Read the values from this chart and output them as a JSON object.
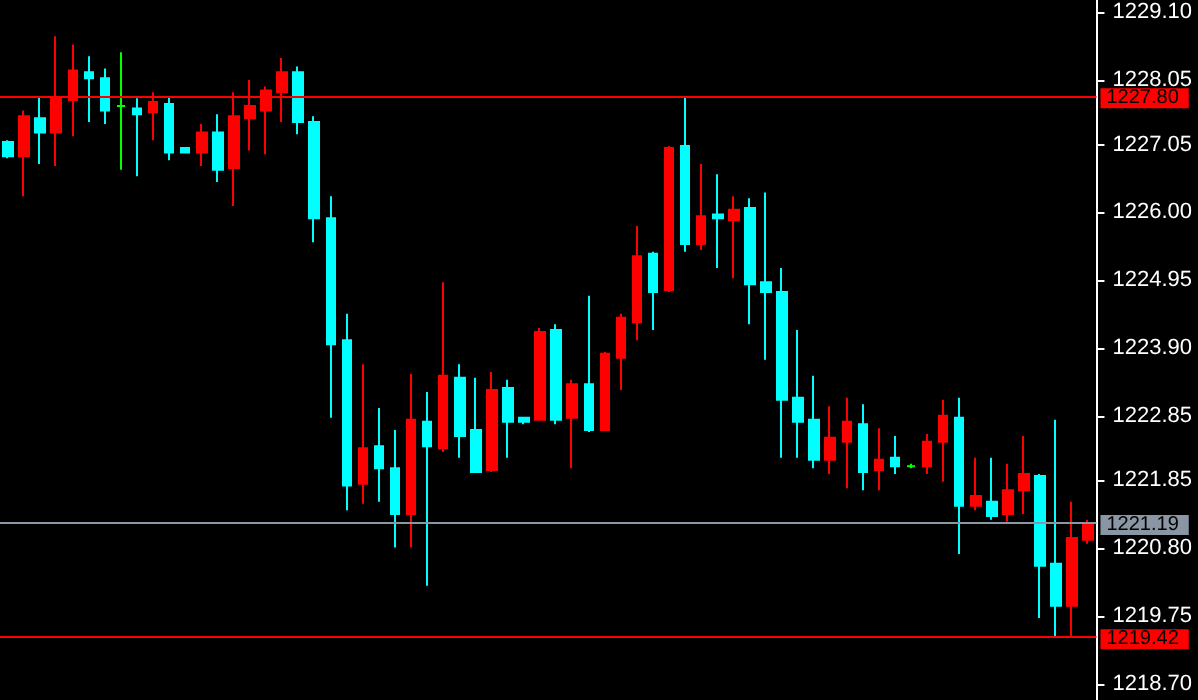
{
  "chart_data": {
    "type": "candlestick",
    "categories": [
      null,
      null,
      null,
      null,
      null,
      null,
      null,
      null,
      null,
      null,
      null,
      null,
      null,
      null,
      null,
      null,
      null,
      null,
      null,
      null,
      null,
      null,
      null,
      null,
      null,
      null,
      null,
      null,
      null,
      null,
      null,
      null,
      null,
      null,
      null,
      null,
      null,
      null,
      null,
      null,
      null,
      null,
      null,
      null,
      null,
      null,
      null,
      null,
      null,
      null,
      null,
      null,
      null,
      null,
      null,
      null,
      null,
      null,
      null,
      null,
      null,
      null,
      null,
      null,
      null,
      null,
      null,
      null
    ],
    "ohlc": [
      [
        1227.09,
        1227.12,
        1226.84,
        1226.87
      ],
      [
        1226.87,
        1227.58,
        1226.25,
        1227.49
      ],
      [
        1227.46,
        1227.8,
        1226.75,
        1227.24
      ],
      [
        1227.24,
        1228.73,
        1226.72,
        1227.77
      ],
      [
        1227.74,
        1228.6,
        1227.18,
        1228.2
      ],
      [
        1228.17,
        1228.42,
        1227.4,
        1228.08
      ],
      [
        1228.08,
        1228.23,
        1227.37,
        1227.58
      ],
      [
        1227.65,
        1228.48,
        1226.66,
        1227.65
      ],
      [
        1227.61,
        1227.77,
        1226.56,
        1227.52
      ],
      [
        1227.55,
        1227.86,
        1227.12,
        1227.71
      ],
      [
        1227.68,
        1227.8,
        1226.81,
        1226.93
      ],
      [
        1227.0,
        1227.0,
        1226.93,
        1226.93
      ],
      [
        1226.93,
        1227.37,
        1226.72,
        1227.24
      ],
      [
        1227.24,
        1227.52,
        1226.47,
        1226.66
      ],
      [
        1226.69,
        1227.86,
        1226.1,
        1227.49
      ],
      [
        1227.46,
        1228.05,
        1226.96,
        1227.65
      ],
      [
        1227.58,
        1227.95,
        1226.9,
        1227.89
      ],
      [
        1227.86,
        1228.39,
        1227.4,
        1228.17
      ],
      [
        1228.17,
        1228.26,
        1227.21,
        1227.4
      ],
      [
        1227.4,
        1227.49,
        1225.54,
        1225.91
      ],
      [
        1225.91,
        1226.25,
        1222.82,
        1223.96
      ],
      [
        1224.02,
        1224.43,
        1221.39,
        1221.77
      ],
      [
        1221.8,
        1223.65,
        1221.49,
        1222.35
      ],
      [
        1222.38,
        1222.97,
        1221.52,
        1222.04
      ],
      [
        1222.04,
        1222.63,
        1220.81,
        1221.33
      ],
      [
        1221.33,
        1223.5,
        1220.81,
        1222.79
      ],
      [
        1222.76,
        1223.22,
        1220.22,
        1222.38
      ],
      [
        1222.35,
        1224.92,
        1222.29,
        1223.47
      ],
      [
        1223.44,
        1223.65,
        1222.2,
        1222.54
      ],
      [
        1222.63,
        1223.44,
        1221.98,
        1221.98
      ],
      [
        1222.01,
        1223.53,
        1221.98,
        1223.25
      ],
      [
        1223.28,
        1223.41,
        1222.2,
        1222.76
      ],
      [
        1222.82,
        1222.82,
        1222.72,
        1222.76
      ],
      [
        1222.79,
        1224.21,
        1222.79,
        1224.15
      ],
      [
        1224.18,
        1224.27,
        1222.72,
        1222.79
      ],
      [
        1222.82,
        1223.41,
        1222.04,
        1223.34
      ],
      [
        1223.34,
        1224.71,
        1222.6,
        1222.63
      ],
      [
        1222.63,
        1223.84,
        1222.63,
        1223.81
      ],
      [
        1223.75,
        1224.43,
        1223.25,
        1224.37
      ],
      [
        1224.3,
        1225.79,
        1224.02,
        1225.32
      ],
      [
        1225.36,
        1225.39,
        1224.18,
        1224.77
      ],
      [
        1224.8,
        1227.03,
        1224.77,
        1227.0
      ],
      [
        1227.03,
        1227.8,
        1225.39,
        1225.51
      ],
      [
        1225.51,
        1226.75,
        1225.42,
        1225.94
      ],
      [
        1225.97,
        1226.59,
        1225.14,
        1225.91
      ],
      [
        1225.88,
        1226.25,
        1224.98,
        1226.04
      ],
      [
        1226.07,
        1226.22,
        1224.27,
        1224.89
      ],
      [
        1224.92,
        1226.31,
        1223.72,
        1224.77
      ],
      [
        1224.77,
        1225.14,
        1222.2,
        1223.1
      ],
      [
        1223.13,
        1224.18,
        1222.2,
        1222.76
      ],
      [
        1222.79,
        1223.47,
        1222.04,
        1222.17
      ],
      [
        1222.17,
        1223.0,
        1221.95,
        1222.51
      ],
      [
        1222.45,
        1223.13,
        1221.73,
        1222.76
      ],
      [
        1222.72,
        1223.03,
        1221.7,
        1221.98
      ],
      [
        1222.01,
        1222.66,
        1221.7,
        1222.17
      ],
      [
        1222.2,
        1222.54,
        1221.95,
        1222.07
      ],
      [
        1222.07,
        1222.11,
        1222.04,
        1222.07
      ],
      [
        1222.07,
        1222.57,
        1221.95,
        1222.45
      ],
      [
        1222.45,
        1223.1,
        1221.83,
        1222.85
      ],
      [
        1222.82,
        1223.13,
        1220.71,
        1221.46
      ],
      [
        1221.46,
        1222.2,
        1221.39,
        1221.61
      ],
      [
        1221.52,
        1222.2,
        1221.24,
        1221.3
      ],
      [
        1221.33,
        1222.11,
        1221.21,
        1221.7
      ],
      [
        1221.7,
        1222.54,
        1221.33,
        1221.95
      ],
      [
        1221.92,
        1221.95,
        1219.72,
        1220.53
      ],
      [
        1220.56,
        1222.79,
        1219.44,
        1219.91
      ],
      [
        1219.91,
        1221.52,
        1219.42,
        1220.96
      ],
      [
        1220.93,
        1221.24,
        1220.87,
        1221.19
      ]
    ],
    "colors": [
      "#00ffff",
      "#ff0000",
      "#00ffff",
      "#ff0000",
      "#ff0000",
      "#00ffff",
      "#00ffff",
      "#00ff00",
      "#00ffff",
      "#ff0000",
      "#00ffff",
      "#00ffff",
      "#ff0000",
      "#00ffff",
      "#ff0000",
      "#ff0000",
      "#ff0000",
      "#ff0000",
      "#00ffff",
      "#00ffff",
      "#00ffff",
      "#00ffff",
      "#ff0000",
      "#00ffff",
      "#00ffff",
      "#ff0000",
      "#00ffff",
      "#ff0000",
      "#00ffff",
      "#00ffff",
      "#ff0000",
      "#00ffff",
      "#00ffff",
      "#ff0000",
      "#00ffff",
      "#ff0000",
      "#00ffff",
      "#ff0000",
      "#ff0000",
      "#ff0000",
      "#00ffff",
      "#ff0000",
      "#00ffff",
      "#ff0000",
      "#00ffff",
      "#ff0000",
      "#00ffff",
      "#00ffff",
      "#00ffff",
      "#00ffff",
      "#00ffff",
      "#ff0000",
      "#ff0000",
      "#00ffff",
      "#ff0000",
      "#00ffff",
      "#00ff00",
      "#ff0000",
      "#ff0000",
      "#00ffff",
      "#ff0000",
      "#00ffff",
      "#ff0000",
      "#ff0000",
      "#00ffff",
      "#00ffff",
      "#ff0000",
      "#ff0000"
    ],
    "ylim": [
      1218.45,
      1229.29
    ],
    "yticks": [
      {
        "value": 1218.7,
        "label": "1218.70"
      },
      {
        "value": 1219.75,
        "label": "1219.75"
      },
      {
        "value": 1220.8,
        "label": "1220.80"
      },
      {
        "value": 1221.85,
        "label": "1221.85"
      },
      {
        "value": 1222.85,
        "label": "1222.85"
      },
      {
        "value": 1223.9,
        "label": "1223.90"
      },
      {
        "value": 1224.95,
        "label": "1224.95"
      },
      {
        "value": 1226.0,
        "label": "1226.00"
      },
      {
        "value": 1227.05,
        "label": "1227.05"
      },
      {
        "value": 1228.05,
        "label": "1228.05"
      },
      {
        "value": 1229.1,
        "label": "1229.10"
      }
    ],
    "ref_lines": [
      {
        "axis": "y",
        "value": 1227.8,
        "label": "1227.80",
        "color": "#ff0000"
      },
      {
        "axis": "y",
        "value": 1221.19,
        "label": "1221.19",
        "color": "#8a96a3"
      },
      {
        "axis": "y",
        "value": 1219.42,
        "label": "1219.42",
        "color": "#ff0000"
      }
    ]
  }
}
